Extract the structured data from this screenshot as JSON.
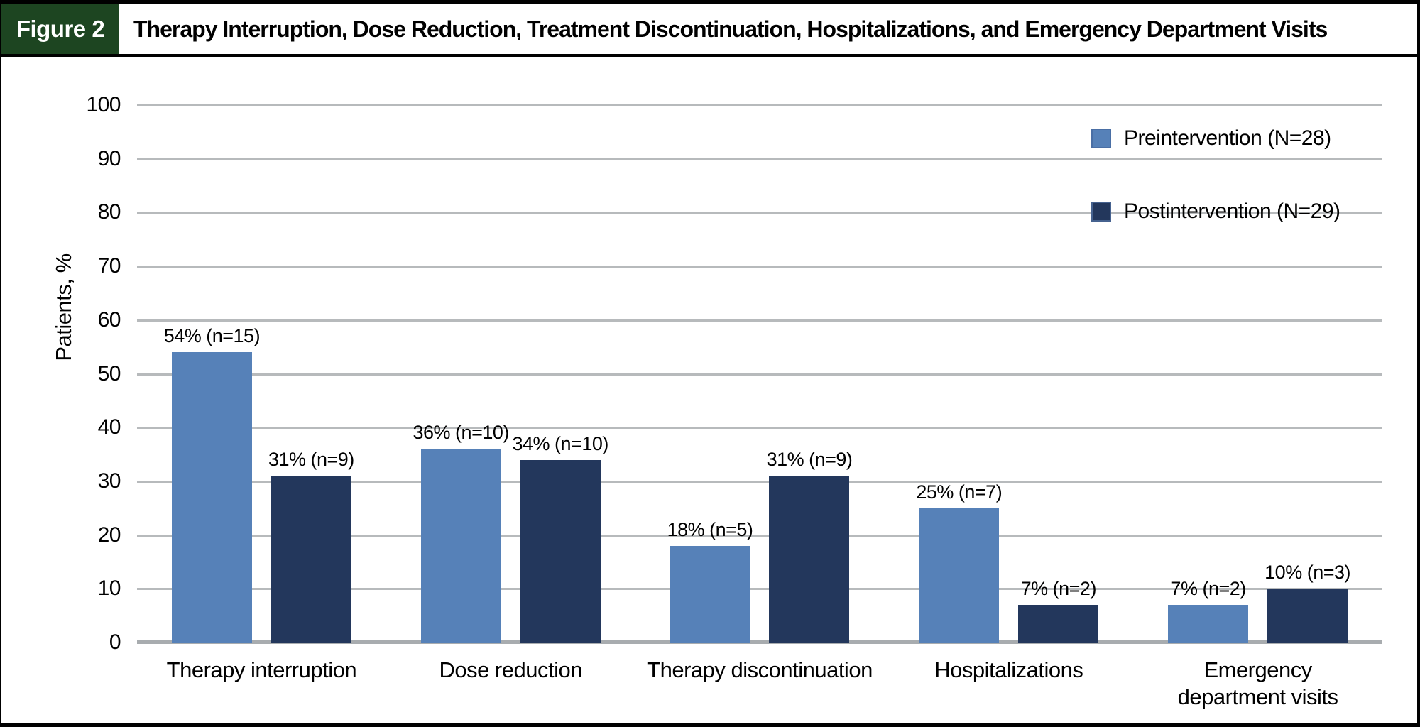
{
  "header": {
    "figure_label": "Figure 2",
    "title": "Therapy Interruption, Dose Reduction, Treatment Discontinuation, Hospitalizations, and Emergency Department Visits"
  },
  "colors": {
    "figure_badge_green": "#1D4521",
    "preintervention_blue": "#5681B8",
    "postintervention_navy": "#23375C",
    "gridline_gray": "#b7babc",
    "axis_baseline_gray": "#a8acaf",
    "frame_black": "#000000"
  },
  "chart_data": {
    "type": "bar",
    "title": "",
    "xlabel": "",
    "ylabel": "Patients, %",
    "ylim": [
      0,
      100
    ],
    "yticks": [
      0,
      10,
      20,
      30,
      40,
      50,
      60,
      70,
      80,
      90,
      100
    ],
    "grid": true,
    "legend_position": "top-right",
    "categories": [
      "Therapy interruption",
      "Dose reduction",
      "Therapy discontinuation",
      "Hospitalizations",
      "Emergency\ndepartment visits"
    ],
    "series": [
      {
        "name": "Preintervention (N=28)",
        "color": "#5681B8",
        "values": [
          54,
          36,
          18,
          25,
          7
        ],
        "labels": [
          "54% (n=15)",
          "36% (n=10)",
          "18% (n=5)",
          "25% (n=7)",
          "7% (n=2)"
        ]
      },
      {
        "name": "Postintervention (N=29)",
        "color": "#23375C",
        "values": [
          31,
          34,
          31,
          7,
          10
        ],
        "labels": [
          "31% (n=9)",
          "34% (n=10)",
          "31% (n=9)",
          "7% (n=2)",
          "10% (n=3)"
        ]
      }
    ]
  }
}
